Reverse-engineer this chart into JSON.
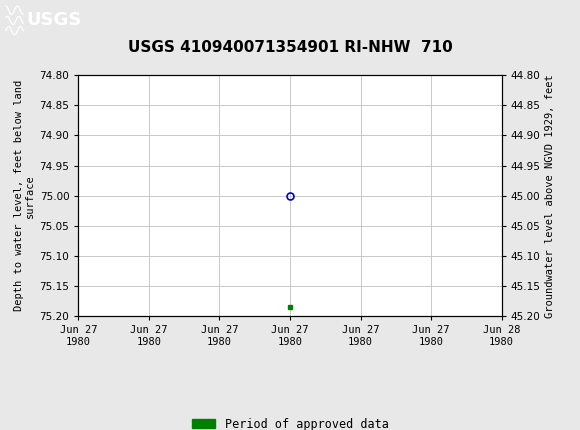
{
  "title": "USGS 410940071354901 RI-NHW  710",
  "ylabel_left": "Depth to water level, feet below land\nsurface",
  "ylabel_right": "Groundwater level above NGVD 1929, feet",
  "ylim_left": [
    75.2,
    74.8
  ],
  "ylim_right": [
    44.8,
    45.2
  ],
  "yticks_left": [
    74.8,
    74.85,
    74.9,
    74.95,
    75.0,
    75.05,
    75.1,
    75.15,
    75.2
  ],
  "yticks_right": [
    44.8,
    44.85,
    44.9,
    44.95,
    45.0,
    45.05,
    45.1,
    45.15,
    45.2
  ],
  "circle_point_x": 3,
  "circle_point_y": 75.0,
  "square_point_x": 3,
  "square_point_y": 75.185,
  "header_bg_color": "#1a6b3c",
  "header_text_color": "#ffffff",
  "fig_bg_color": "#e8e8e8",
  "plot_bg_color": "#ffffff",
  "grid_color": "#c0c0c0",
  "circle_color": "#0000cc",
  "square_color": "#008000",
  "legend_label": "Period of approved data",
  "legend_color": "#008000",
  "title_fontsize": 11,
  "axis_label_fontsize": 7.5,
  "tick_label_fontsize": 7.5,
  "legend_fontsize": 8.5,
  "xtick_labels": [
    "Jun 27\n1980",
    "Jun 27\n1980",
    "Jun 27\n1980",
    "Jun 27\n1980",
    "Jun 27\n1980",
    "Jun 27\n1980",
    "Jun 28\n1980"
  ],
  "xtick_positions": [
    0,
    1,
    2,
    3,
    4,
    5,
    6
  ],
  "xlim": [
    0,
    6
  ]
}
